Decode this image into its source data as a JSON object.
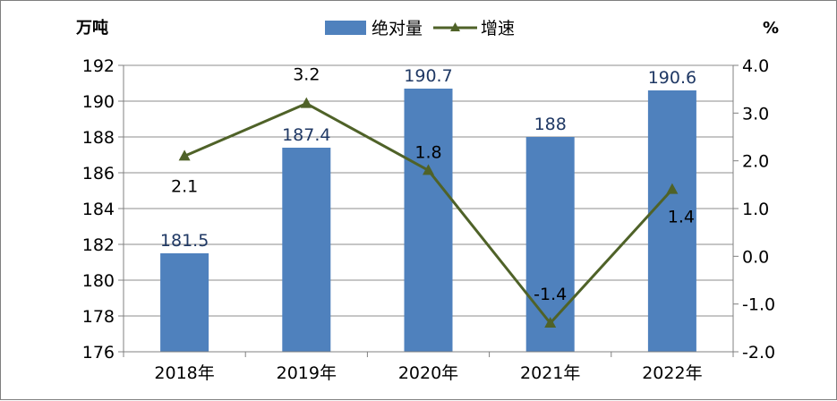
{
  "chart_data": {
    "type": "bar",
    "categories": [
      "2018年",
      "2019年",
      "2020年",
      "2021年",
      "2022年"
    ],
    "series": [
      {
        "name": "绝对量",
        "type": "bar",
        "axis": "left",
        "values": [
          181.5,
          187.4,
          190.7,
          188,
          190.6
        ],
        "color": "#4f81bd",
        "labels": [
          "181.5",
          "187.4",
          "190.7",
          "188",
          "190.6"
        ]
      },
      {
        "name": "增速",
        "type": "line",
        "axis": "right",
        "values": [
          2.1,
          3.2,
          1.8,
          -1.4,
          1.4
        ],
        "color": "#4f6228",
        "marker": "triangle",
        "labels": [
          "2.1",
          "3.2",
          "1.8",
          "-1.4",
          "1.4"
        ]
      }
    ],
    "y_left": {
      "unit_label": "万吨",
      "range": [
        176,
        192
      ],
      "ticks": [
        "176",
        "178",
        "180",
        "182",
        "184",
        "186",
        "188",
        "190",
        "192"
      ]
    },
    "y_right": {
      "unit_label": "%",
      "range": [
        -2.0,
        4.0
      ],
      "ticks": [
        "-2.0",
        "-1.0",
        "0.0",
        "1.0",
        "2.0",
        "3.0",
        "4.0"
      ]
    },
    "grid": true,
    "legend": "top-center"
  }
}
